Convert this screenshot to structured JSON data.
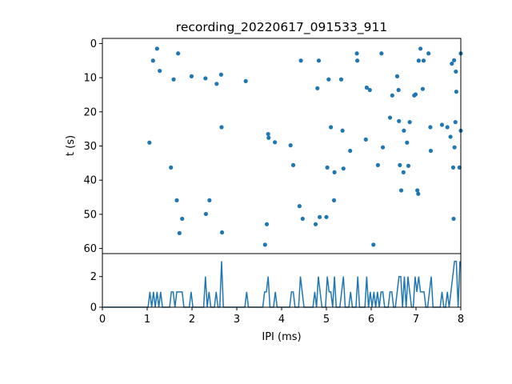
{
  "chart_data": [
    {
      "type": "scatter",
      "title": "recording_20220617_091533_911",
      "xlabel": "",
      "ylabel": "t (s)",
      "xlim": [
        0,
        8
      ],
      "ylim": [
        61.5,
        -1.5
      ],
      "y_inverted": true,
      "xticks": [],
      "yticks": [
        0,
        10,
        20,
        30,
        40,
        50,
        60
      ],
      "ytick_labels": [
        "0",
        "10",
        "20",
        "30",
        "40",
        "50",
        "60"
      ],
      "color": "#1f77b4",
      "points": [
        [
          1.05,
          29.0
        ],
        [
          1.13,
          5.0
        ],
        [
          1.22,
          1.5
        ],
        [
          1.28,
          8.0
        ],
        [
          1.53,
          36.3
        ],
        [
          1.59,
          10.5
        ],
        [
          1.66,
          45.9
        ],
        [
          1.69,
          2.9
        ],
        [
          1.72,
          55.5
        ],
        [
          1.78,
          51.3
        ],
        [
          1.99,
          9.6
        ],
        [
          2.3,
          10.2
        ],
        [
          2.31,
          49.9
        ],
        [
          2.39,
          45.9
        ],
        [
          2.55,
          11.8
        ],
        [
          2.65,
          9.1
        ],
        [
          2.66,
          24.5
        ],
        [
          2.67,
          55.3
        ],
        [
          3.2,
          11.0
        ],
        [
          3.63,
          58.9
        ],
        [
          3.67,
          52.9
        ],
        [
          3.7,
          26.5
        ],
        [
          3.71,
          27.6
        ],
        [
          3.85,
          28.9
        ],
        [
          4.2,
          29.8
        ],
        [
          4.26,
          35.6
        ],
        [
          4.4,
          47.6
        ],
        [
          4.43,
          5.0
        ],
        [
          4.47,
          51.3
        ],
        [
          4.76,
          52.9
        ],
        [
          4.8,
          13.1
        ],
        [
          4.83,
          5.0
        ],
        [
          4.85,
          50.8
        ],
        [
          5.0,
          50.8
        ],
        [
          5.02,
          36.3
        ],
        [
          5.05,
          10.5
        ],
        [
          5.1,
          24.5
        ],
        [
          5.17,
          45.9
        ],
        [
          5.18,
          37.7
        ],
        [
          5.33,
          10.5
        ],
        [
          5.36,
          25.5
        ],
        [
          5.38,
          36.6
        ],
        [
          5.53,
          31.4
        ],
        [
          5.68,
          2.9
        ],
        [
          5.69,
          5.0
        ],
        [
          5.88,
          28.1
        ],
        [
          5.9,
          12.9
        ],
        [
          5.97,
          13.6
        ],
        [
          6.05,
          58.9
        ],
        [
          6.15,
          35.6
        ],
        [
          6.23,
          2.9
        ],
        [
          6.26,
          30.4
        ],
        [
          6.42,
          21.7
        ],
        [
          6.47,
          15.2
        ],
        [
          6.58,
          9.6
        ],
        [
          6.61,
          13.6
        ],
        [
          6.62,
          22.7
        ],
        [
          6.64,
          35.6
        ],
        [
          6.67,
          43.0
        ],
        [
          6.72,
          37.7
        ],
        [
          6.73,
          25.5
        ],
        [
          6.8,
          29.0
        ],
        [
          6.83,
          35.8
        ],
        [
          6.86,
          23.0
        ],
        [
          6.96,
          15.2
        ],
        [
          6.99,
          14.9
        ],
        [
          7.03,
          43.0
        ],
        [
          7.05,
          44.0
        ],
        [
          7.06,
          5.0
        ],
        [
          7.1,
          1.5
        ],
        [
          7.15,
          13.3
        ],
        [
          7.17,
          5.0
        ],
        [
          7.28,
          2.9
        ],
        [
          7.32,
          24.5
        ],
        [
          7.33,
          31.4
        ],
        [
          7.58,
          23.8
        ],
        [
          7.7,
          24.5
        ],
        [
          7.77,
          27.3
        ],
        [
          7.8,
          5.9
        ],
        [
          7.83,
          36.3
        ],
        [
          7.84,
          51.3
        ],
        [
          7.85,
          4.9
        ],
        [
          7.86,
          30.4
        ],
        [
          7.88,
          23.0
        ],
        [
          7.89,
          8.2
        ],
        [
          7.9,
          14.1
        ],
        [
          7.97,
          36.3
        ],
        [
          8.0,
          25.5
        ],
        [
          8.0,
          2.9
        ]
      ]
    },
    {
      "type": "line",
      "title": "",
      "xlabel": "IPI (ms)",
      "ylabel": "",
      "xlim": [
        0,
        8
      ],
      "ylim": [
        0,
        3.5
      ],
      "xticks": [
        0,
        1,
        2,
        3,
        4,
        5,
        6,
        7,
        8
      ],
      "xtick_labels": [
        "0",
        "1",
        "2",
        "3",
        "4",
        "5",
        "6",
        "7",
        "8"
      ],
      "yticks": [
        0,
        2
      ],
      "ytick_labels": [
        "0",
        "2"
      ],
      "color": "#1f77b4",
      "bin_width": 0.04
    }
  ]
}
